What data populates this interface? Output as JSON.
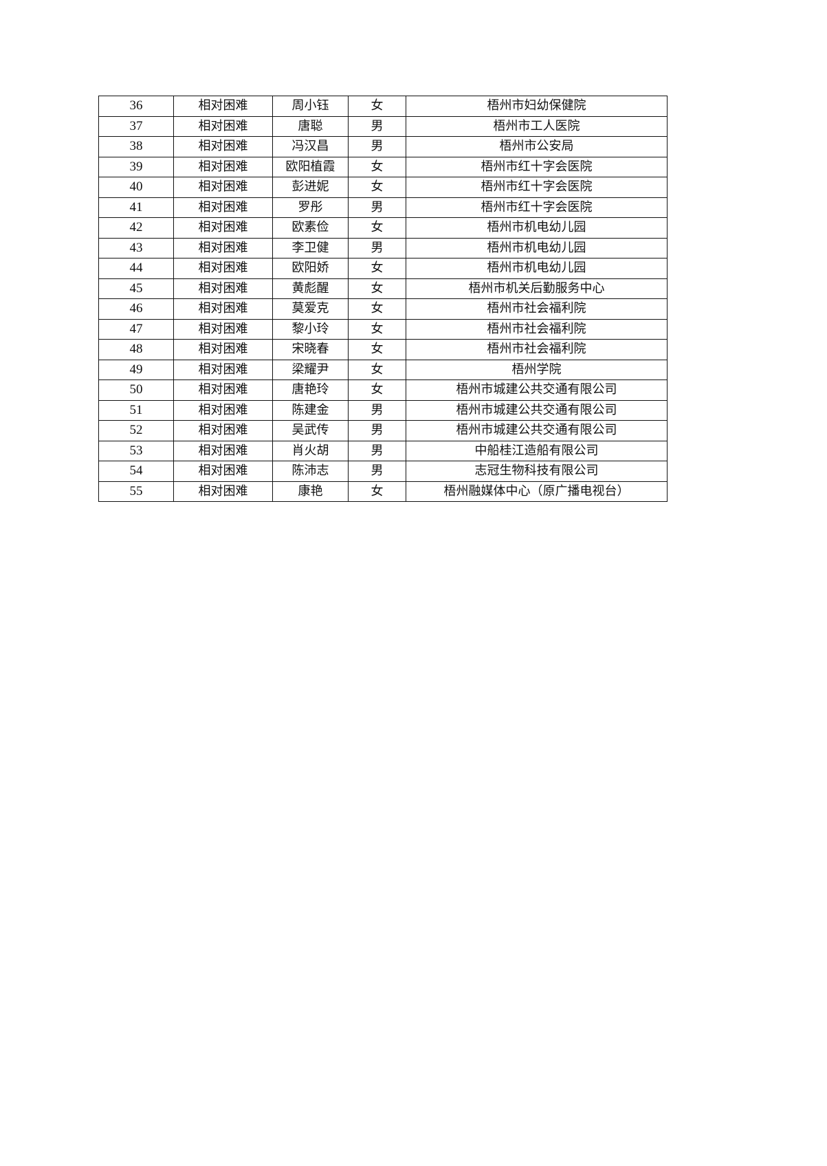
{
  "table": {
    "rows": [
      {
        "no": "36",
        "category": "相对困难",
        "name": "周小钰",
        "gender": "女",
        "unit": "梧州市妇幼保健院"
      },
      {
        "no": "37",
        "category": "相对困难",
        "name": "唐聪",
        "gender": "男",
        "unit": "梧州市工人医院"
      },
      {
        "no": "38",
        "category": "相对困难",
        "name": "冯汉昌",
        "gender": "男",
        "unit": "梧州市公安局"
      },
      {
        "no": "39",
        "category": "相对困难",
        "name": "欧阳植霞",
        "gender": "女",
        "unit": "梧州市红十字会医院"
      },
      {
        "no": "40",
        "category": "相对困难",
        "name": "彭进妮",
        "gender": "女",
        "unit": "梧州市红十字会医院"
      },
      {
        "no": "41",
        "category": "相对困难",
        "name": "罗彤",
        "gender": "男",
        "unit": "梧州市红十字会医院"
      },
      {
        "no": "42",
        "category": "相对困难",
        "name": "欧素俭",
        "gender": "女",
        "unit": "梧州市机电幼儿园"
      },
      {
        "no": "43",
        "category": "相对困难",
        "name": "李卫健",
        "gender": "男",
        "unit": "梧州市机电幼儿园"
      },
      {
        "no": "44",
        "category": "相对困难",
        "name": "欧阳娇",
        "gender": "女",
        "unit": "梧州市机电幼儿园"
      },
      {
        "no": "45",
        "category": "相对困难",
        "name": "黄彪醒",
        "gender": "女",
        "unit": "梧州市机关后勤服务中心"
      },
      {
        "no": "46",
        "category": "相对困难",
        "name": "莫爱克",
        "gender": "女",
        "unit": "梧州市社会福利院"
      },
      {
        "no": "47",
        "category": "相对困难",
        "name": "黎小玲",
        "gender": "女",
        "unit": "梧州市社会福利院"
      },
      {
        "no": "48",
        "category": "相对困难",
        "name": "宋晓春",
        "gender": "女",
        "unit": "梧州市社会福利院"
      },
      {
        "no": "49",
        "category": "相对困难",
        "name": "梁耀尹",
        "gender": "女",
        "unit": "梧州学院"
      },
      {
        "no": "50",
        "category": "相对困难",
        "name": "唐艳玲",
        "gender": "女",
        "unit": "梧州市城建公共交通有限公司"
      },
      {
        "no": "51",
        "category": "相对困难",
        "name": "陈建金",
        "gender": "男",
        "unit": "梧州市城建公共交通有限公司"
      },
      {
        "no": "52",
        "category": "相对困难",
        "name": "吴武传",
        "gender": "男",
        "unit": "梧州市城建公共交通有限公司"
      },
      {
        "no": "53",
        "category": "相对困难",
        "name": "肖火胡",
        "gender": "男",
        "unit": "中船桂江造船有限公司"
      },
      {
        "no": "54",
        "category": "相对困难",
        "name": "陈沛志",
        "gender": "男",
        "unit": "志冠生物科技有限公司"
      },
      {
        "no": "55",
        "category": "相对困难",
        "name": "康艳",
        "gender": "女",
        "unit": "梧州融媒体中心（原广播电视台）"
      }
    ]
  }
}
